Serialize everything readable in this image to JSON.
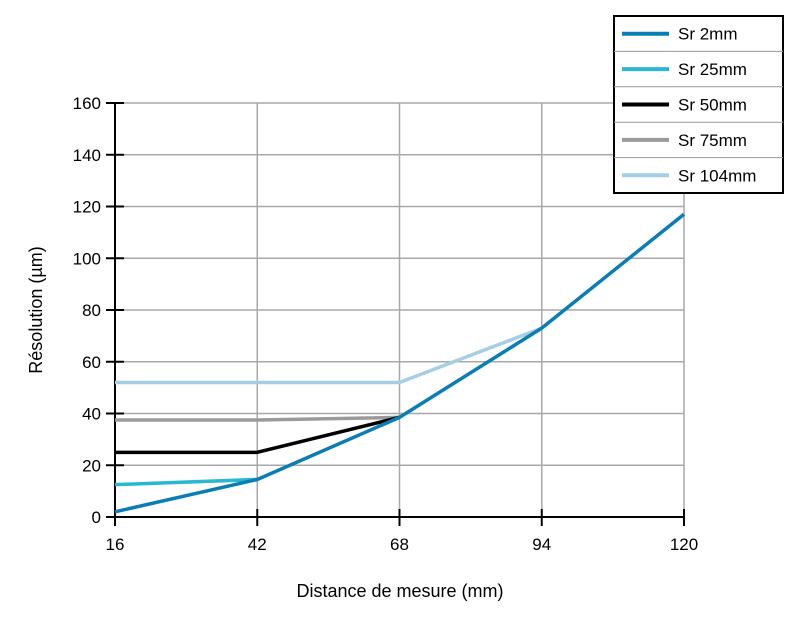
{
  "chart_data": {
    "type": "line",
    "title": "",
    "xlabel": "Distance de mesure (mm)",
    "ylabel": "Résolution (µm)",
    "x": [
      16,
      42,
      68,
      94,
      120
    ],
    "x_ticks": [
      "16",
      "42",
      "68",
      "94",
      "120"
    ],
    "y_ticks": [
      "0",
      "20",
      "40",
      "60",
      "80",
      "100",
      "120",
      "140",
      "160"
    ],
    "xlim": [
      16,
      120
    ],
    "ylim": [
      0,
      160
    ],
    "grid": true,
    "legend_position": "top-right",
    "series": [
      {
        "name": "Sr 2mm",
        "color": "#0a7db5",
        "points": [
          [
            16,
            2
          ],
          [
            42,
            14.5
          ],
          [
            68,
            38.5
          ],
          [
            94,
            73
          ],
          [
            120,
            117
          ]
        ]
      },
      {
        "name": "Sr 25mm",
        "color": "#29b8d2",
        "points": [
          [
            16,
            12.5
          ],
          [
            42,
            14.5
          ]
        ]
      },
      {
        "name": "Sr 50mm",
        "color": "#000000",
        "points": [
          [
            16,
            25
          ],
          [
            42,
            25
          ],
          [
            68,
            38.5
          ]
        ]
      },
      {
        "name": "Sr 75mm",
        "color": "#9a9a9a",
        "points": [
          [
            16,
            37.5
          ],
          [
            42,
            37.5
          ],
          [
            68,
            38.5
          ]
        ]
      },
      {
        "name": "Sr 104mm",
        "color": "#a4cfe2",
        "points": [
          [
            16,
            52
          ],
          [
            42,
            52
          ],
          [
            68,
            52
          ],
          [
            94,
            73
          ]
        ]
      }
    ]
  }
}
